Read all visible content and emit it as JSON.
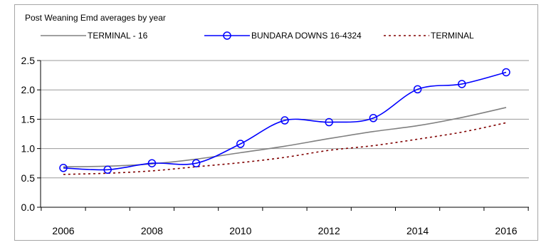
{
  "chart_data": {
    "type": "line",
    "title": "Post Weaning Emd  averages by year",
    "xlabel": "",
    "ylabel": "",
    "x": [
      2006,
      2007,
      2008,
      2009,
      2010,
      2011,
      2012,
      2013,
      2014,
      2015,
      2016
    ],
    "x_tick_labels": [
      "2006",
      "2008",
      "2010",
      "2012",
      "2014",
      "2016"
    ],
    "y_tick_labels": [
      "0.0",
      "0.5",
      "1.0",
      "1.5",
      "2.0",
      "2.5"
    ],
    "ylim": [
      0,
      2.5
    ],
    "grid": {
      "horizontal": true,
      "vertical": false
    },
    "legend_position": "top",
    "series": [
      {
        "name": "TERMINAL - 16",
        "color": "#808080",
        "style": "solid",
        "values": [
          0.69,
          0.7,
          0.74,
          0.82,
          0.93,
          1.04,
          1.17,
          1.29,
          1.39,
          1.53,
          1.7
        ]
      },
      {
        "name": "BUNDARA DOWNS 16-4324",
        "color": "#0000ff",
        "style": "solid-markers",
        "marker": "open-circle",
        "values": [
          0.67,
          0.64,
          0.75,
          0.75,
          1.08,
          1.48,
          1.45,
          1.52,
          2.01,
          2.1,
          2.3
        ]
      },
      {
        "name": "TERMINAL",
        "color": "#800000",
        "style": "dotted",
        "values": [
          0.56,
          0.58,
          0.62,
          0.69,
          0.76,
          0.85,
          0.97,
          1.05,
          1.16,
          1.28,
          1.44
        ]
      }
    ]
  }
}
